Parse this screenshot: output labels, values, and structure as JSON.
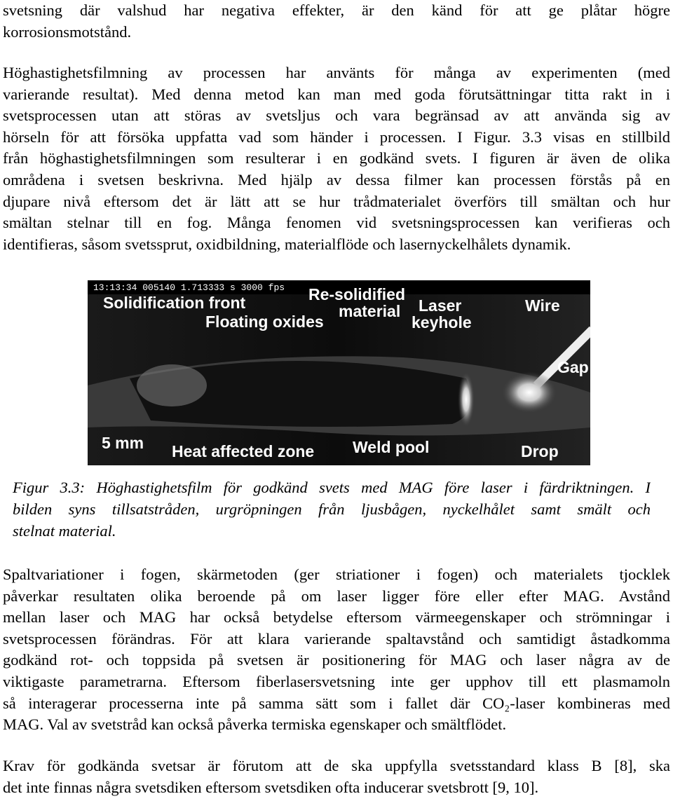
{
  "text_before": [
    {
      "lines": [
        "svetsning där valshud har negativa effekter, är den känd för att ge plåtar högre",
        "korrosionsmotstånd."
      ]
    },
    {
      "lines": [
        "Höghastighetsfilmning av processen har använts för många av experimenten (med",
        "varierande resultat). Med denna metod kan man med goda förutsättningar titta rakt in i",
        "svetsprocessen utan att störas av svetsljus och vara begränsad av att använda sig av",
        "hörseln för att försöka uppfatta vad som händer i processen. I Figur. 3.3 visas en stillbild",
        "från höghastighetsfilmningen som resulterar i en godkänd svets. I figuren är även de olika",
        "områdena i svetsen beskrivna. Med hjälp av dessa filmer kan processen förstås på en",
        "djupare nivå eftersom det är lätt att se hur trådmaterialet överförs till smältan och hur",
        "smältan stelnar till en fog. Många fenomen vid svetsningsprocessen kan verifieras och",
        "identifieras, såsom svetssprut, oxidbildning, materialflöde och lasernyckelhålets dynamik."
      ]
    }
  ],
  "figure": {
    "timestamp": "13:13:34 005140 1.713333 s 3000 fps",
    "labels": [
      "Solidification front",
      "Floating oxides",
      "Re-solidified",
      "material",
      "Laser",
      "keyhole",
      "Wire",
      "Gap",
      "5 mm",
      "Heat affected zone",
      "Weld pool",
      "Drop"
    ],
    "caption": [
      "Figur 3.3: Höghastighetsfilm för godkänd svets med MAG före laser i färdriktningen. I",
      "bilden syns tillsatstråden, urgröpningen från ljusbågen, nyckelhålet samt smält och",
      "stelnat material."
    ]
  },
  "text_after": [
    {
      "lines": [
        "Spaltvariationer i fogen, skärmetoden (ger striationer i fogen) och materialets tjocklek",
        "påverkar resultaten olika beroende på om laser ligger före eller efter MAG. Avstånd",
        "mellan laser och MAG har också betydelse eftersom värmeegenskaper och strömningar i",
        "svetsprocessen förändras. För att klara varierande spaltavstånd och samtidigt åstadkomma",
        "godkänd rot- och toppsida på svetsen är positionering för MAG och laser några av de",
        "viktigaste parametrarna. Eftersom fiberlasersvetsning inte ger upphov till ett plasmamoln",
        "så interagerar processerna inte på samma sätt som i fallet där CO₂-laser kombineras med",
        "MAG. Val av svetstråd kan också påverka termiska egenskaper och smältflödet."
      ]
    },
    {
      "lines": [
        "Krav för godkända svetsar är förutom att de ska uppfylla svetsstandard klass B [8], ska",
        "det inte finnas några svetsdiken eftersom svetsdiken ofta inducerar svetsbrott [9, 10]."
      ]
    }
  ]
}
